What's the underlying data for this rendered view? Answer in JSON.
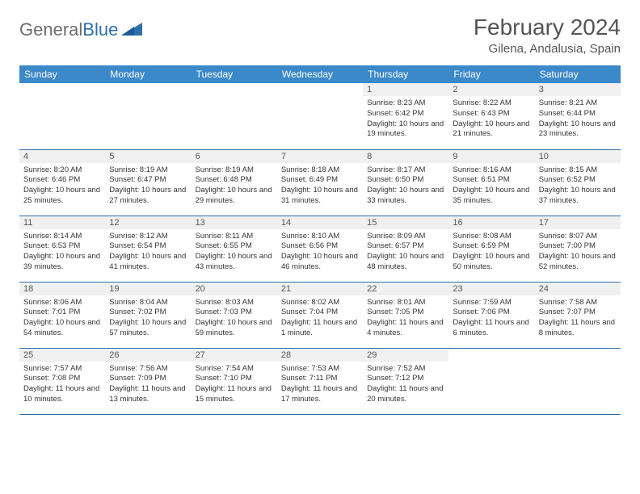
{
  "logo": {
    "word1": "General",
    "word2": "Blue"
  },
  "title": "February 2024",
  "location": "Gilena, Andalusia, Spain",
  "colors": {
    "header_bg": "#3b89c9",
    "header_text": "#ffffff",
    "row_border": "#2f6fa8",
    "daynum_bg": "#f0f0f0",
    "body_text": "#353535",
    "logo_gray": "#6d6d6d",
    "logo_blue": "#2f6fa8"
  },
  "typography": {
    "title_fontsize": 28,
    "location_fontsize": 15,
    "header_fontsize": 12,
    "daynum_fontsize": 11,
    "body_fontsize": 9.5
  },
  "layout": {
    "columns": 7,
    "rows": 5,
    "first_weekday": "Sunday"
  },
  "weekdays": [
    "Sunday",
    "Monday",
    "Tuesday",
    "Wednesday",
    "Thursday",
    "Friday",
    "Saturday"
  ],
  "cells": [
    {
      "n": "",
      "sr": "",
      "ss": "",
      "dl": ""
    },
    {
      "n": "",
      "sr": "",
      "ss": "",
      "dl": ""
    },
    {
      "n": "",
      "sr": "",
      "ss": "",
      "dl": ""
    },
    {
      "n": "",
      "sr": "",
      "ss": "",
      "dl": ""
    },
    {
      "n": "1",
      "sr": "Sunrise: 8:23 AM",
      "ss": "Sunset: 6:42 PM",
      "dl": "Daylight: 10 hours and 19 minutes."
    },
    {
      "n": "2",
      "sr": "Sunrise: 8:22 AM",
      "ss": "Sunset: 6:43 PM",
      "dl": "Daylight: 10 hours and 21 minutes."
    },
    {
      "n": "3",
      "sr": "Sunrise: 8:21 AM",
      "ss": "Sunset: 6:44 PM",
      "dl": "Daylight: 10 hours and 23 minutes."
    },
    {
      "n": "4",
      "sr": "Sunrise: 8:20 AM",
      "ss": "Sunset: 6:46 PM",
      "dl": "Daylight: 10 hours and 25 minutes."
    },
    {
      "n": "5",
      "sr": "Sunrise: 8:19 AM",
      "ss": "Sunset: 6:47 PM",
      "dl": "Daylight: 10 hours and 27 minutes."
    },
    {
      "n": "6",
      "sr": "Sunrise: 8:19 AM",
      "ss": "Sunset: 6:48 PM",
      "dl": "Daylight: 10 hours and 29 minutes."
    },
    {
      "n": "7",
      "sr": "Sunrise: 8:18 AM",
      "ss": "Sunset: 6:49 PM",
      "dl": "Daylight: 10 hours and 31 minutes."
    },
    {
      "n": "8",
      "sr": "Sunrise: 8:17 AM",
      "ss": "Sunset: 6:50 PM",
      "dl": "Daylight: 10 hours and 33 minutes."
    },
    {
      "n": "9",
      "sr": "Sunrise: 8:16 AM",
      "ss": "Sunset: 6:51 PM",
      "dl": "Daylight: 10 hours and 35 minutes."
    },
    {
      "n": "10",
      "sr": "Sunrise: 8:15 AM",
      "ss": "Sunset: 6:52 PM",
      "dl": "Daylight: 10 hours and 37 minutes."
    },
    {
      "n": "11",
      "sr": "Sunrise: 8:14 AM",
      "ss": "Sunset: 6:53 PM",
      "dl": "Daylight: 10 hours and 39 minutes."
    },
    {
      "n": "12",
      "sr": "Sunrise: 8:12 AM",
      "ss": "Sunset: 6:54 PM",
      "dl": "Daylight: 10 hours and 41 minutes."
    },
    {
      "n": "13",
      "sr": "Sunrise: 8:11 AM",
      "ss": "Sunset: 6:55 PM",
      "dl": "Daylight: 10 hours and 43 minutes."
    },
    {
      "n": "14",
      "sr": "Sunrise: 8:10 AM",
      "ss": "Sunset: 6:56 PM",
      "dl": "Daylight: 10 hours and 46 minutes."
    },
    {
      "n": "15",
      "sr": "Sunrise: 8:09 AM",
      "ss": "Sunset: 6:57 PM",
      "dl": "Daylight: 10 hours and 48 minutes."
    },
    {
      "n": "16",
      "sr": "Sunrise: 8:08 AM",
      "ss": "Sunset: 6:59 PM",
      "dl": "Daylight: 10 hours and 50 minutes."
    },
    {
      "n": "17",
      "sr": "Sunrise: 8:07 AM",
      "ss": "Sunset: 7:00 PM",
      "dl": "Daylight: 10 hours and 52 minutes."
    },
    {
      "n": "18",
      "sr": "Sunrise: 8:06 AM",
      "ss": "Sunset: 7:01 PM",
      "dl": "Daylight: 10 hours and 54 minutes."
    },
    {
      "n": "19",
      "sr": "Sunrise: 8:04 AM",
      "ss": "Sunset: 7:02 PM",
      "dl": "Daylight: 10 hours and 57 minutes."
    },
    {
      "n": "20",
      "sr": "Sunrise: 8:03 AM",
      "ss": "Sunset: 7:03 PM",
      "dl": "Daylight: 10 hours and 59 minutes."
    },
    {
      "n": "21",
      "sr": "Sunrise: 8:02 AM",
      "ss": "Sunset: 7:04 PM",
      "dl": "Daylight: 11 hours and 1 minute."
    },
    {
      "n": "22",
      "sr": "Sunrise: 8:01 AM",
      "ss": "Sunset: 7:05 PM",
      "dl": "Daylight: 11 hours and 4 minutes."
    },
    {
      "n": "23",
      "sr": "Sunrise: 7:59 AM",
      "ss": "Sunset: 7:06 PM",
      "dl": "Daylight: 11 hours and 6 minutes."
    },
    {
      "n": "24",
      "sr": "Sunrise: 7:58 AM",
      "ss": "Sunset: 7:07 PM",
      "dl": "Daylight: 11 hours and 8 minutes."
    },
    {
      "n": "25",
      "sr": "Sunrise: 7:57 AM",
      "ss": "Sunset: 7:08 PM",
      "dl": "Daylight: 11 hours and 10 minutes."
    },
    {
      "n": "26",
      "sr": "Sunrise: 7:56 AM",
      "ss": "Sunset: 7:09 PM",
      "dl": "Daylight: 11 hours and 13 minutes."
    },
    {
      "n": "27",
      "sr": "Sunrise: 7:54 AM",
      "ss": "Sunset: 7:10 PM",
      "dl": "Daylight: 11 hours and 15 minutes."
    },
    {
      "n": "28",
      "sr": "Sunrise: 7:53 AM",
      "ss": "Sunset: 7:11 PM",
      "dl": "Daylight: 11 hours and 17 minutes."
    },
    {
      "n": "29",
      "sr": "Sunrise: 7:52 AM",
      "ss": "Sunset: 7:12 PM",
      "dl": "Daylight: 11 hours and 20 minutes."
    },
    {
      "n": "",
      "sr": "",
      "ss": "",
      "dl": ""
    },
    {
      "n": "",
      "sr": "",
      "ss": "",
      "dl": ""
    }
  ]
}
